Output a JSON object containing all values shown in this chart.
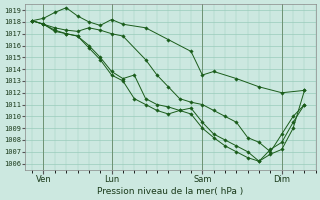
{
  "xlabel": "Pression niveau de la mer( hPa )",
  "ylim": [
    1005.5,
    1019.5
  ],
  "yticks": [
    1006,
    1007,
    1008,
    1009,
    1010,
    1011,
    1012,
    1013,
    1014,
    1015,
    1016,
    1017,
    1018,
    1019
  ],
  "background_color": "#cce8e0",
  "grid_color": "#99ccbb",
  "line_color": "#1a5c1a",
  "xtick_labels": [
    "Ven",
    "Lun",
    "Sam",
    "Dim"
  ],
  "xtick_positions": [
    0.5,
    3.5,
    7.5,
    11.0
  ],
  "xlim": [
    -0.3,
    12.2
  ],
  "lines": [
    {
      "x": [
        0.0,
        0.5,
        1.0,
        1.5,
        2.0,
        2.5,
        3.0,
        3.5,
        4.0,
        5.0,
        6.0,
        7.0,
        7.5,
        8.0,
        9.0,
        10.0,
        11.0,
        12.0
      ],
      "y": [
        1018.1,
        1018.3,
        1018.8,
        1019.2,
        1018.5,
        1018.0,
        1017.7,
        1018.2,
        1017.8,
        1017.5,
        1016.5,
        1015.5,
        1013.5,
        1013.8,
        1013.2,
        1012.5,
        1012.0,
        1012.2
      ]
    },
    {
      "x": [
        0.0,
        0.5,
        1.0,
        1.5,
        2.0,
        2.5,
        3.0,
        3.5,
        4.0,
        5.0,
        5.5,
        6.0,
        6.5,
        7.0,
        7.5,
        8.0,
        8.5,
        9.0,
        9.5,
        10.0,
        10.5,
        11.0,
        11.5,
        12.0
      ],
      "y": [
        1018.1,
        1017.8,
        1017.5,
        1017.3,
        1017.2,
        1017.5,
        1017.3,
        1017.0,
        1016.8,
        1014.8,
        1013.5,
        1012.5,
        1011.5,
        1011.2,
        1011.0,
        1010.5,
        1010.0,
        1009.5,
        1008.2,
        1007.8,
        1007.0,
        1008.5,
        1010.0,
        1011.0
      ]
    },
    {
      "x": [
        0.0,
        0.5,
        1.0,
        1.5,
        2.0,
        2.5,
        3.0,
        3.5,
        4.0,
        4.5,
        5.0,
        5.5,
        6.0,
        6.5,
        7.0,
        7.5,
        8.0,
        8.5,
        9.0,
        9.5,
        10.0,
        10.5,
        11.0,
        11.5,
        12.0
      ],
      "y": [
        1018.1,
        1017.8,
        1017.3,
        1017.0,
        1016.8,
        1016.0,
        1015.0,
        1013.8,
        1013.2,
        1013.5,
        1011.5,
        1011.0,
        1010.8,
        1010.5,
        1010.7,
        1009.5,
        1008.5,
        1008.0,
        1007.5,
        1007.0,
        1006.2,
        1007.2,
        1007.8,
        1009.5,
        1011.0
      ]
    },
    {
      "x": [
        0.0,
        0.5,
        1.0,
        1.5,
        2.0,
        2.5,
        3.0,
        3.5,
        4.0,
        4.5,
        5.0,
        5.5,
        6.0,
        6.5,
        7.0,
        7.5,
        8.0,
        8.5,
        9.0,
        9.5,
        10.0,
        10.5,
        11.0,
        11.5,
        12.0
      ],
      "y": [
        1018.1,
        1017.8,
        1017.2,
        1017.0,
        1016.8,
        1015.8,
        1014.8,
        1013.5,
        1013.0,
        1011.5,
        1011.0,
        1010.5,
        1010.2,
        1010.5,
        1010.2,
        1009.0,
        1008.2,
        1007.5,
        1007.0,
        1006.5,
        1006.2,
        1006.8,
        1007.2,
        1009.0,
        1012.2
      ]
    }
  ]
}
